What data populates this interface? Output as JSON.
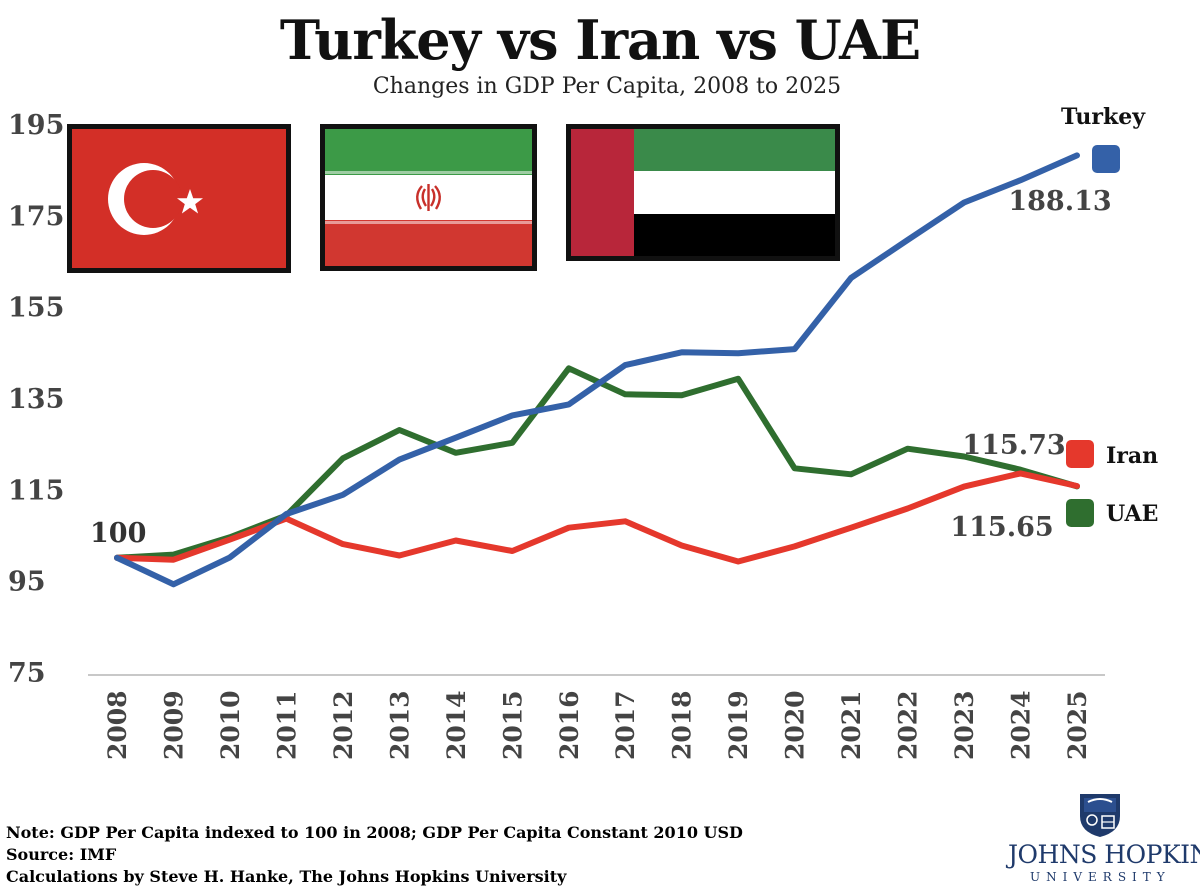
{
  "chart_data": {
    "type": "line",
    "title": "Turkey vs Iran vs UAE",
    "subtitle": "Changes in GDP Per Capita, 2008 to 2025",
    "x": [
      "2008",
      "2009",
      "2010",
      "2011",
      "2012",
      "2013",
      "2014",
      "2015",
      "2016",
      "2017",
      "2018",
      "2019",
      "2020",
      "2021",
      "2022",
      "2023",
      "2024",
      "2025"
    ],
    "yticks": [
      75,
      95,
      115,
      135,
      155,
      175,
      195
    ],
    "ylim": [
      75,
      195
    ],
    "grid": false,
    "start_label": "100",
    "series": [
      {
        "name": "Turkey",
        "color": "#3461a8",
        "end_label": "188.13",
        "values": [
          100,
          94.2,
          100.1,
          109.6,
          113.8,
          121.5,
          126.3,
          131.2,
          133.6,
          142.2,
          145.0,
          144.8,
          145.7,
          161.3,
          169.6,
          177.8,
          182.7,
          188.13
        ]
      },
      {
        "name": "Iran",
        "color": "#e5382c",
        "end_label": "115.73",
        "values": [
          100,
          99.6,
          104.0,
          108.6,
          103.0,
          100.5,
          103.8,
          101.5,
          106.6,
          108.0,
          102.7,
          99.2,
          102.5,
          106.6,
          110.8,
          115.6,
          118.5,
          115.73
        ]
      },
      {
        "name": "UAE",
        "color": "#2f6e2f",
        "end_label": "115.65",
        "values": [
          100,
          100.7,
          104.5,
          109.3,
          121.8,
          128.0,
          123.0,
          125.2,
          141.5,
          135.8,
          135.6,
          139.2,
          119.6,
          118.3,
          123.9,
          122.2,
          119.3,
          115.65
        ]
      }
    ]
  },
  "flags": [
    {
      "name": "Turkey",
      "colors": {
        "red": "#d32f27",
        "white": "#ffffff"
      }
    },
    {
      "name": "Iran",
      "colors": {
        "green": "#3c9a47",
        "white": "#ffffff",
        "red": "#d13730",
        "emblem": "#c8302a"
      }
    },
    {
      "name": "UAE",
      "colors": {
        "red": "#b8263a",
        "green": "#3a8a4a",
        "white": "#ffffff",
        "black": "#000000"
      }
    }
  ],
  "notes": [
    "Note: GDP Per Capita indexed to 100 in 2008; GDP Per Capita Constant 2010 USD",
    "Source: IMF",
    "Calculations by Steve H. Hanke, The Johns Hopkins University"
  ],
  "logo": {
    "name": "JOHNS HOPKINS",
    "sub": "UNIVERSITY",
    "color": "#1f3a6b"
  }
}
